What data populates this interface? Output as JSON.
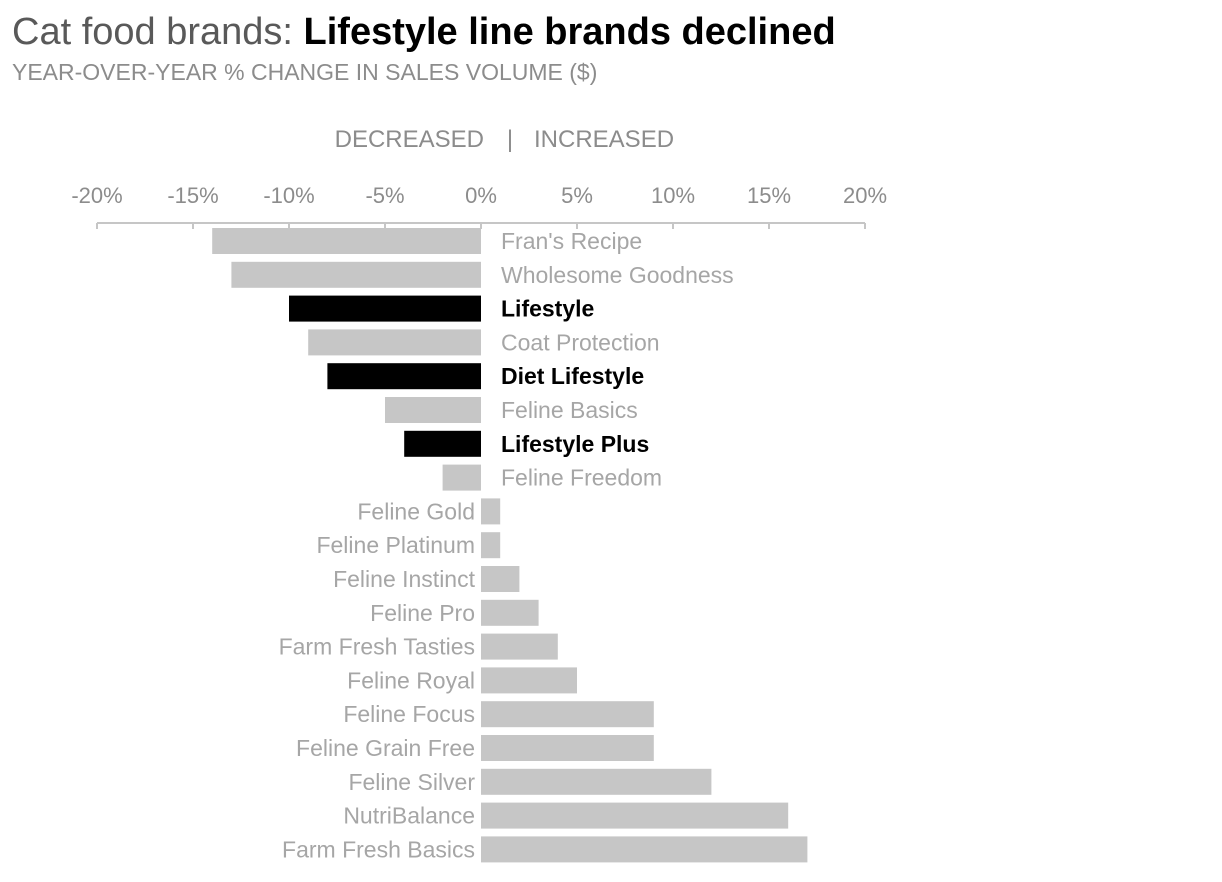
{
  "chart_data": {
    "type": "bar",
    "orientation": "horizontal",
    "title_prefix": "Cat food brands: ",
    "title_emphasis": "Lifestyle line brands declined",
    "subtitle": "YEAR-OVER-YEAR % CHANGE IN SALES VOLUME ($)",
    "direction_labels": {
      "decreased": "DECREASED",
      "separator": "|",
      "increased": "INCREASED"
    },
    "xlim": [
      -20,
      20
    ],
    "x_ticks": [
      -20,
      -15,
      -10,
      -5,
      0,
      5,
      10,
      15,
      20
    ],
    "x_tick_labels": [
      "-20%",
      "-15%",
      "-10%",
      "-5%",
      "0%",
      "5%",
      "10%",
      "15%",
      "20%"
    ],
    "axis_position": "top",
    "grid": false,
    "legend": "none",
    "categories": [
      "Fran's Recipe",
      "Wholesome Goodness",
      "Lifestyle",
      "Coat Protection",
      "Diet Lifestyle",
      "Feline Basics",
      "Lifestyle Plus",
      "Feline Freedom",
      "Feline Gold",
      "Feline Platinum",
      "Feline Instinct",
      "Feline Pro",
      "Farm Fresh Tasties",
      "Feline Royal",
      "Feline Focus",
      "Feline Grain Free",
      "Feline Silver",
      "NutriBalance",
      "Farm Fresh Basics"
    ],
    "values": [
      -14,
      -13,
      -10,
      -9,
      -8,
      -5,
      -4,
      -2,
      1,
      1,
      2,
      3,
      4,
      5,
      9,
      9,
      12,
      16,
      17
    ],
    "highlighted": [
      "Lifestyle",
      "Diet Lifestyle",
      "Lifestyle Plus"
    ],
    "colors": {
      "bar_default": "#c6c6c6",
      "bar_highlight": "#000000",
      "label_default": "#a6a6a6",
      "label_highlight": "#000000",
      "axis": "#c6c6c6"
    }
  }
}
